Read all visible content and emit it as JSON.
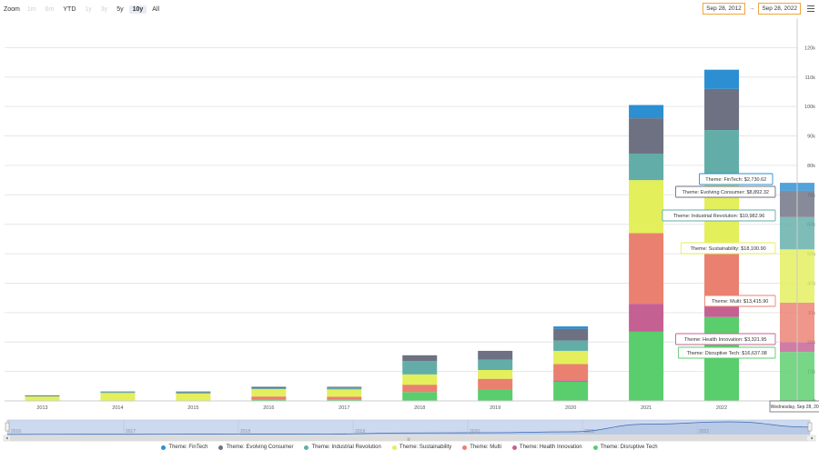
{
  "zoom": {
    "label": "Zoom",
    "buttons": [
      {
        "label": "1m",
        "state": "disabled"
      },
      {
        "label": "6m",
        "state": "disabled"
      },
      {
        "label": "YTD",
        "state": "normal"
      },
      {
        "label": "1y",
        "state": "disabled"
      },
      {
        "label": "3y",
        "state": "disabled"
      },
      {
        "label": "5y",
        "state": "normal"
      },
      {
        "label": "10y",
        "state": "active"
      },
      {
        "label": "All",
        "state": "normal"
      }
    ]
  },
  "range": {
    "from": "Sep 28, 2012",
    "separator": "→",
    "to": "Sep 28, 2022"
  },
  "menu": {
    "icon": "hamburger-menu-icon"
  },
  "colors": {
    "FinTech": "#2b8fd1",
    "Evolving Consumer": "#6d7182",
    "Industrial Revolution": "#62ada8",
    "Sustainability": "#e3ef5b",
    "Multi": "#ea8070",
    "Health Innovation": "#c56093",
    "Disruptive Tech": "#5acd6c"
  },
  "chart_data": {
    "type": "bar",
    "stacked": true,
    "categories": [
      "2013",
      "2014",
      "2015",
      "2016",
      "2017",
      "2018",
      "2019",
      "2020",
      "2021",
      "2022",
      "Sep 28, 2022"
    ],
    "x_tick_labels": [
      "2013",
      "2014",
      "2015",
      "2016",
      "2017",
      "2018",
      "2019",
      "2020",
      "2021",
      "2022",
      ""
    ],
    "series": [
      {
        "name": "Theme: FinTech",
        "key": "FinTech",
        "values": [
          0,
          0,
          0,
          0,
          0,
          0,
          0,
          800,
          4500,
          6500,
          2730.62
        ]
      },
      {
        "name": "Theme: Evolving Consumer",
        "key": "Evolving Consumer",
        "values": [
          200,
          200,
          300,
          500,
          400,
          2000,
          3000,
          4000,
          12000,
          14000,
          8892.32
        ]
      },
      {
        "name": "Theme: Industrial Revolution",
        "key": "Industrial Revolution",
        "values": [
          200,
          300,
          400,
          300,
          500,
          4500,
          3500,
          3500,
          9000,
          18000,
          10982.96
        ]
      },
      {
        "name": "Theme: Sustainability",
        "key": "Sustainability",
        "values": [
          1500,
          2700,
          2500,
          2500,
          2500,
          3500,
          3000,
          4500,
          18000,
          23000,
          18100.9
        ]
      },
      {
        "name": "Theme: Multi",
        "key": "Multi",
        "values": [
          0,
          0,
          0,
          1000,
          1000,
          2500,
          3500,
          5500,
          24000,
          16000,
          13415.9
        ]
      },
      {
        "name": "Theme: Health Innovation",
        "key": "Health Innovation",
        "values": [
          0,
          0,
          0,
          0,
          0,
          0,
          0,
          500,
          9500,
          6500,
          3321.95
        ]
      },
      {
        "name": "Theme: Disruptive Tech",
        "key": "Disruptive Tech",
        "values": [
          0,
          0,
          0,
          500,
          400,
          3000,
          4000,
          6500,
          23500,
          28500,
          16637.08
        ]
      }
    ],
    "ylim": [
      0,
      130000
    ],
    "y_ticks": [
      0,
      10000,
      20000,
      30000,
      40000,
      50000,
      60000,
      70000,
      80000,
      90000,
      100000,
      110000,
      120000
    ],
    "y_tick_labels": [
      "0",
      "10k",
      "20k",
      "30k",
      "40k",
      "50k",
      "60k",
      "70k",
      "80k",
      "90k",
      "100k",
      "110k",
      "120k"
    ],
    "y_axis_side": "right",
    "grid": true,
    "legend_placement": "bottom",
    "highlighted_index": 10,
    "tooltips": [
      {
        "key": "FinTech",
        "text": "Theme: FinTech: $2,730.62"
      },
      {
        "key": "Evolving Consumer",
        "text": "Theme: Evolving Consumer: $8,892.32"
      },
      {
        "key": "Industrial Revolution",
        "text": "Theme: Industrial Revolution: $10,982.96"
      },
      {
        "key": "Sustainability",
        "text": "Theme: Sustainability: $18,100.90"
      },
      {
        "key": "Multi",
        "text": "Theme: Multi: $13,415.90"
      },
      {
        "key": "Health Innovation",
        "text": "Theme: Health Innovation: $3,321.95"
      },
      {
        "key": "Disruptive Tech",
        "text": "Theme: Disruptive Tech: $16,637.08"
      }
    ],
    "crosshair_label": "Wednesday, Sep 28, 2022",
    "navigator": {
      "axis_labels": [
        "2016",
        "2017",
        "2018",
        "2019",
        "2020",
        "2021",
        "2022"
      ],
      "series_values": [
        1800,
        2600,
        3200,
        4800,
        4600,
        15500,
        17500,
        26000,
        100000,
        122000,
        72000
      ]
    }
  }
}
